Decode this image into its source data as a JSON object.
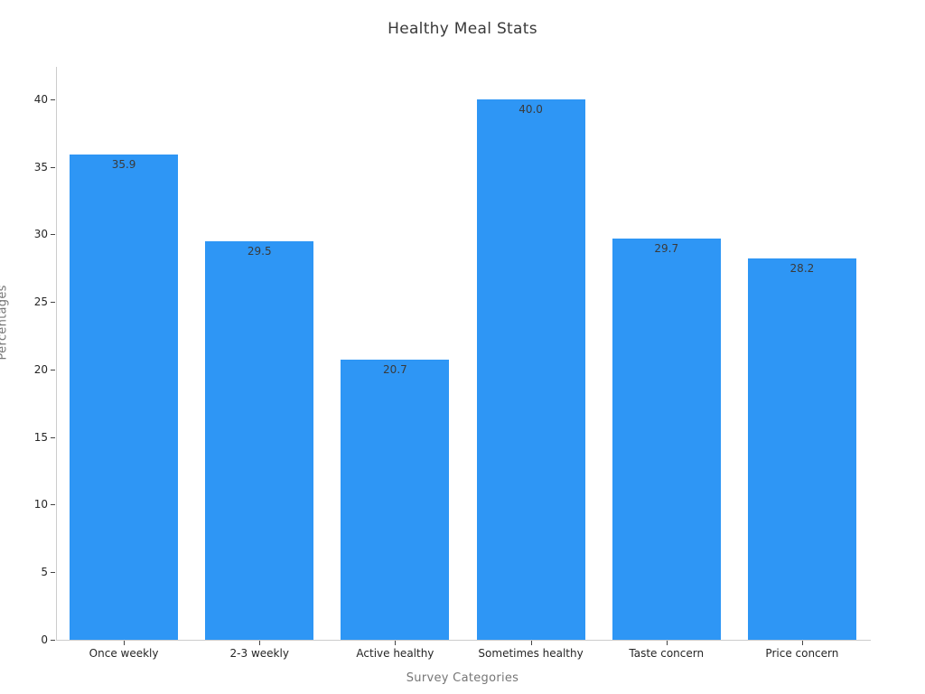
{
  "chart_data": {
    "type": "bar",
    "title": "Healthy Meal Stats",
    "xlabel": "Survey Categories",
    "ylabel": "Percentages",
    "categories": [
      "Once weekly",
      "2-3 weekly",
      "Active healthy",
      "Sometimes healthy",
      "Taste concern",
      "Price concern"
    ],
    "values": [
      35.9,
      29.5,
      20.7,
      40.0,
      29.7,
      28.2
    ],
    "value_labels": [
      "35.9",
      "29.5",
      "20.7",
      "40.0",
      "29.7",
      "28.2"
    ],
    "yticks": [
      0,
      5,
      10,
      15,
      20,
      25,
      30,
      35,
      40
    ],
    "ylim": [
      0,
      42.4
    ],
    "grid": false,
    "legend": false,
    "bar_color": "#2e96f5",
    "value_label_color": "#3a3a3a",
    "tick_label_color": "#262626",
    "axis_label_color": "#767676",
    "spine_color": "#cccccc"
  }
}
